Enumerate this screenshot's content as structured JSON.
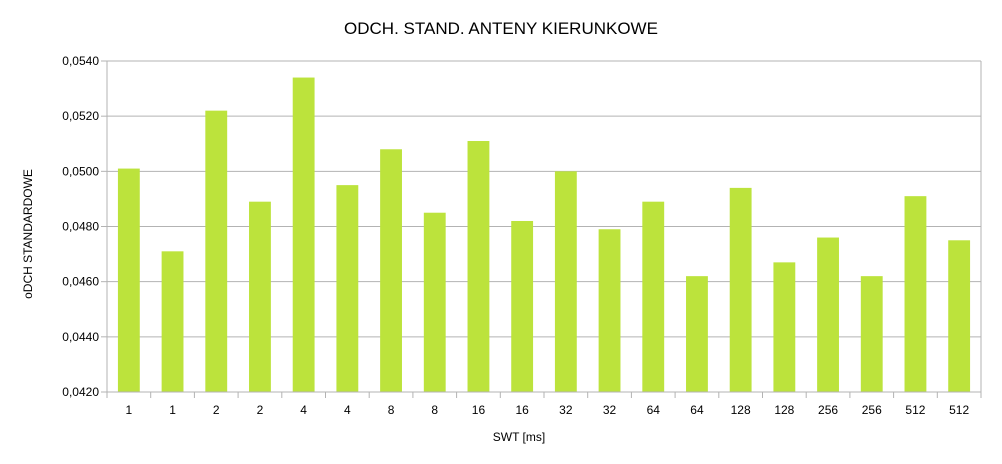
{
  "chart_data": {
    "type": "bar",
    "title": "ODCH. STAND. ANTENY KIERUNKOWE",
    "xlabel": "SWT [ms]",
    "ylabel": "oDCH STANDARDOWE",
    "categories": [
      "1",
      "1",
      "2",
      "2",
      "4",
      "4",
      "8",
      "8",
      "16",
      "16",
      "32",
      "32",
      "64",
      "64",
      "128",
      "128",
      "256",
      "256",
      "512",
      "512"
    ],
    "values": [
      0.0501,
      0.0471,
      0.0522,
      0.0489,
      0.0534,
      0.0495,
      0.0508,
      0.0485,
      0.0511,
      0.0482,
      0.05,
      0.0479,
      0.0489,
      0.0462,
      0.0494,
      0.0467,
      0.0476,
      0.0462,
      0.0491,
      0.0475
    ],
    "ylim": [
      0.042,
      0.054
    ],
    "yticks": [
      0.042,
      0.044,
      0.046,
      0.048,
      0.05,
      0.052,
      0.054
    ],
    "ytick_labels": [
      "0,0420",
      "0,0440",
      "0,0460",
      "0,0480",
      "0,0500",
      "0,0520",
      "0,0540"
    ],
    "grid": "horizontal",
    "bar_color": "#bce33c",
    "grid_color": "#b3b3b3"
  }
}
